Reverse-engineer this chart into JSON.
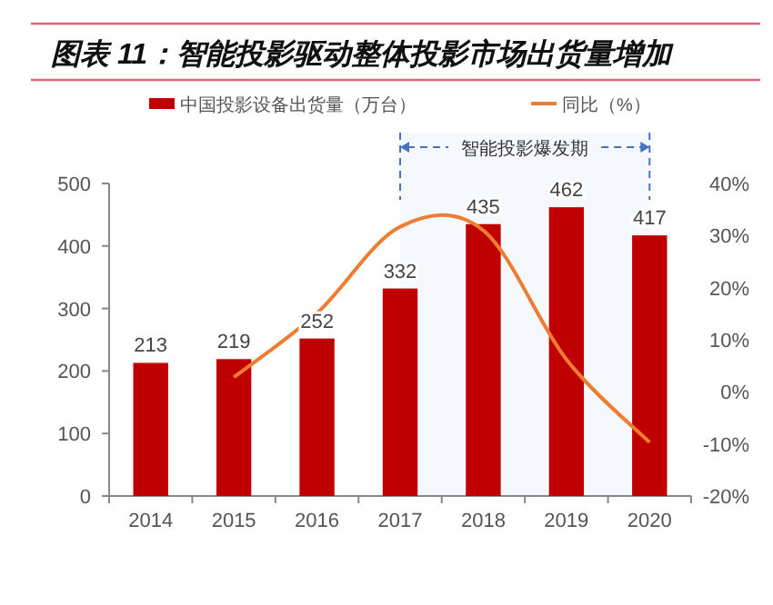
{
  "chart_data": {
    "type": "bar",
    "title": "图表 11：智能投影驱动整体投影市场出货量增加",
    "categories": [
      "2014",
      "2015",
      "2016",
      "2017",
      "2018",
      "2019",
      "2020"
    ],
    "series": [
      {
        "name": "中国投影设备出货量（万台）",
        "color": "#c00000",
        "values": [
          213,
          219,
          252,
          332,
          435,
          462,
          417
        ],
        "value_labels": [
          "213",
          "219",
          "252",
          "332",
          "435",
          "462",
          "417"
        ]
      },
      {
        "name": "同比（%）",
        "type": "line",
        "axis": "y2",
        "color": "#ed7d31",
        "values": [
          null,
          2.8,
          15.1,
          31.7,
          31.0,
          6.2,
          -9.7
        ]
      }
    ],
    "ylim": [
      0,
      500
    ],
    "yticks": [
      0,
      100,
      200,
      300,
      400,
      500
    ],
    "y2lim": [
      -20,
      40
    ],
    "y2ticks": [
      {
        "value": -20,
        "label": "-20%"
      },
      {
        "value": -10,
        "label": "-10%"
      },
      {
        "value": 0,
        "label": "0%"
      },
      {
        "value": 10,
        "label": "10%"
      },
      {
        "value": 20,
        "label": "20%"
      },
      {
        "value": 30,
        "label": "30%"
      },
      {
        "value": 40,
        "label": "40%"
      }
    ],
    "bands": [
      {
        "axis": "x",
        "from": "2017",
        "to": "2020",
        "label": "智能投影爆发期",
        "color": "#4472c4"
      }
    ],
    "legend": "top",
    "grid": false,
    "marker": "none"
  }
}
